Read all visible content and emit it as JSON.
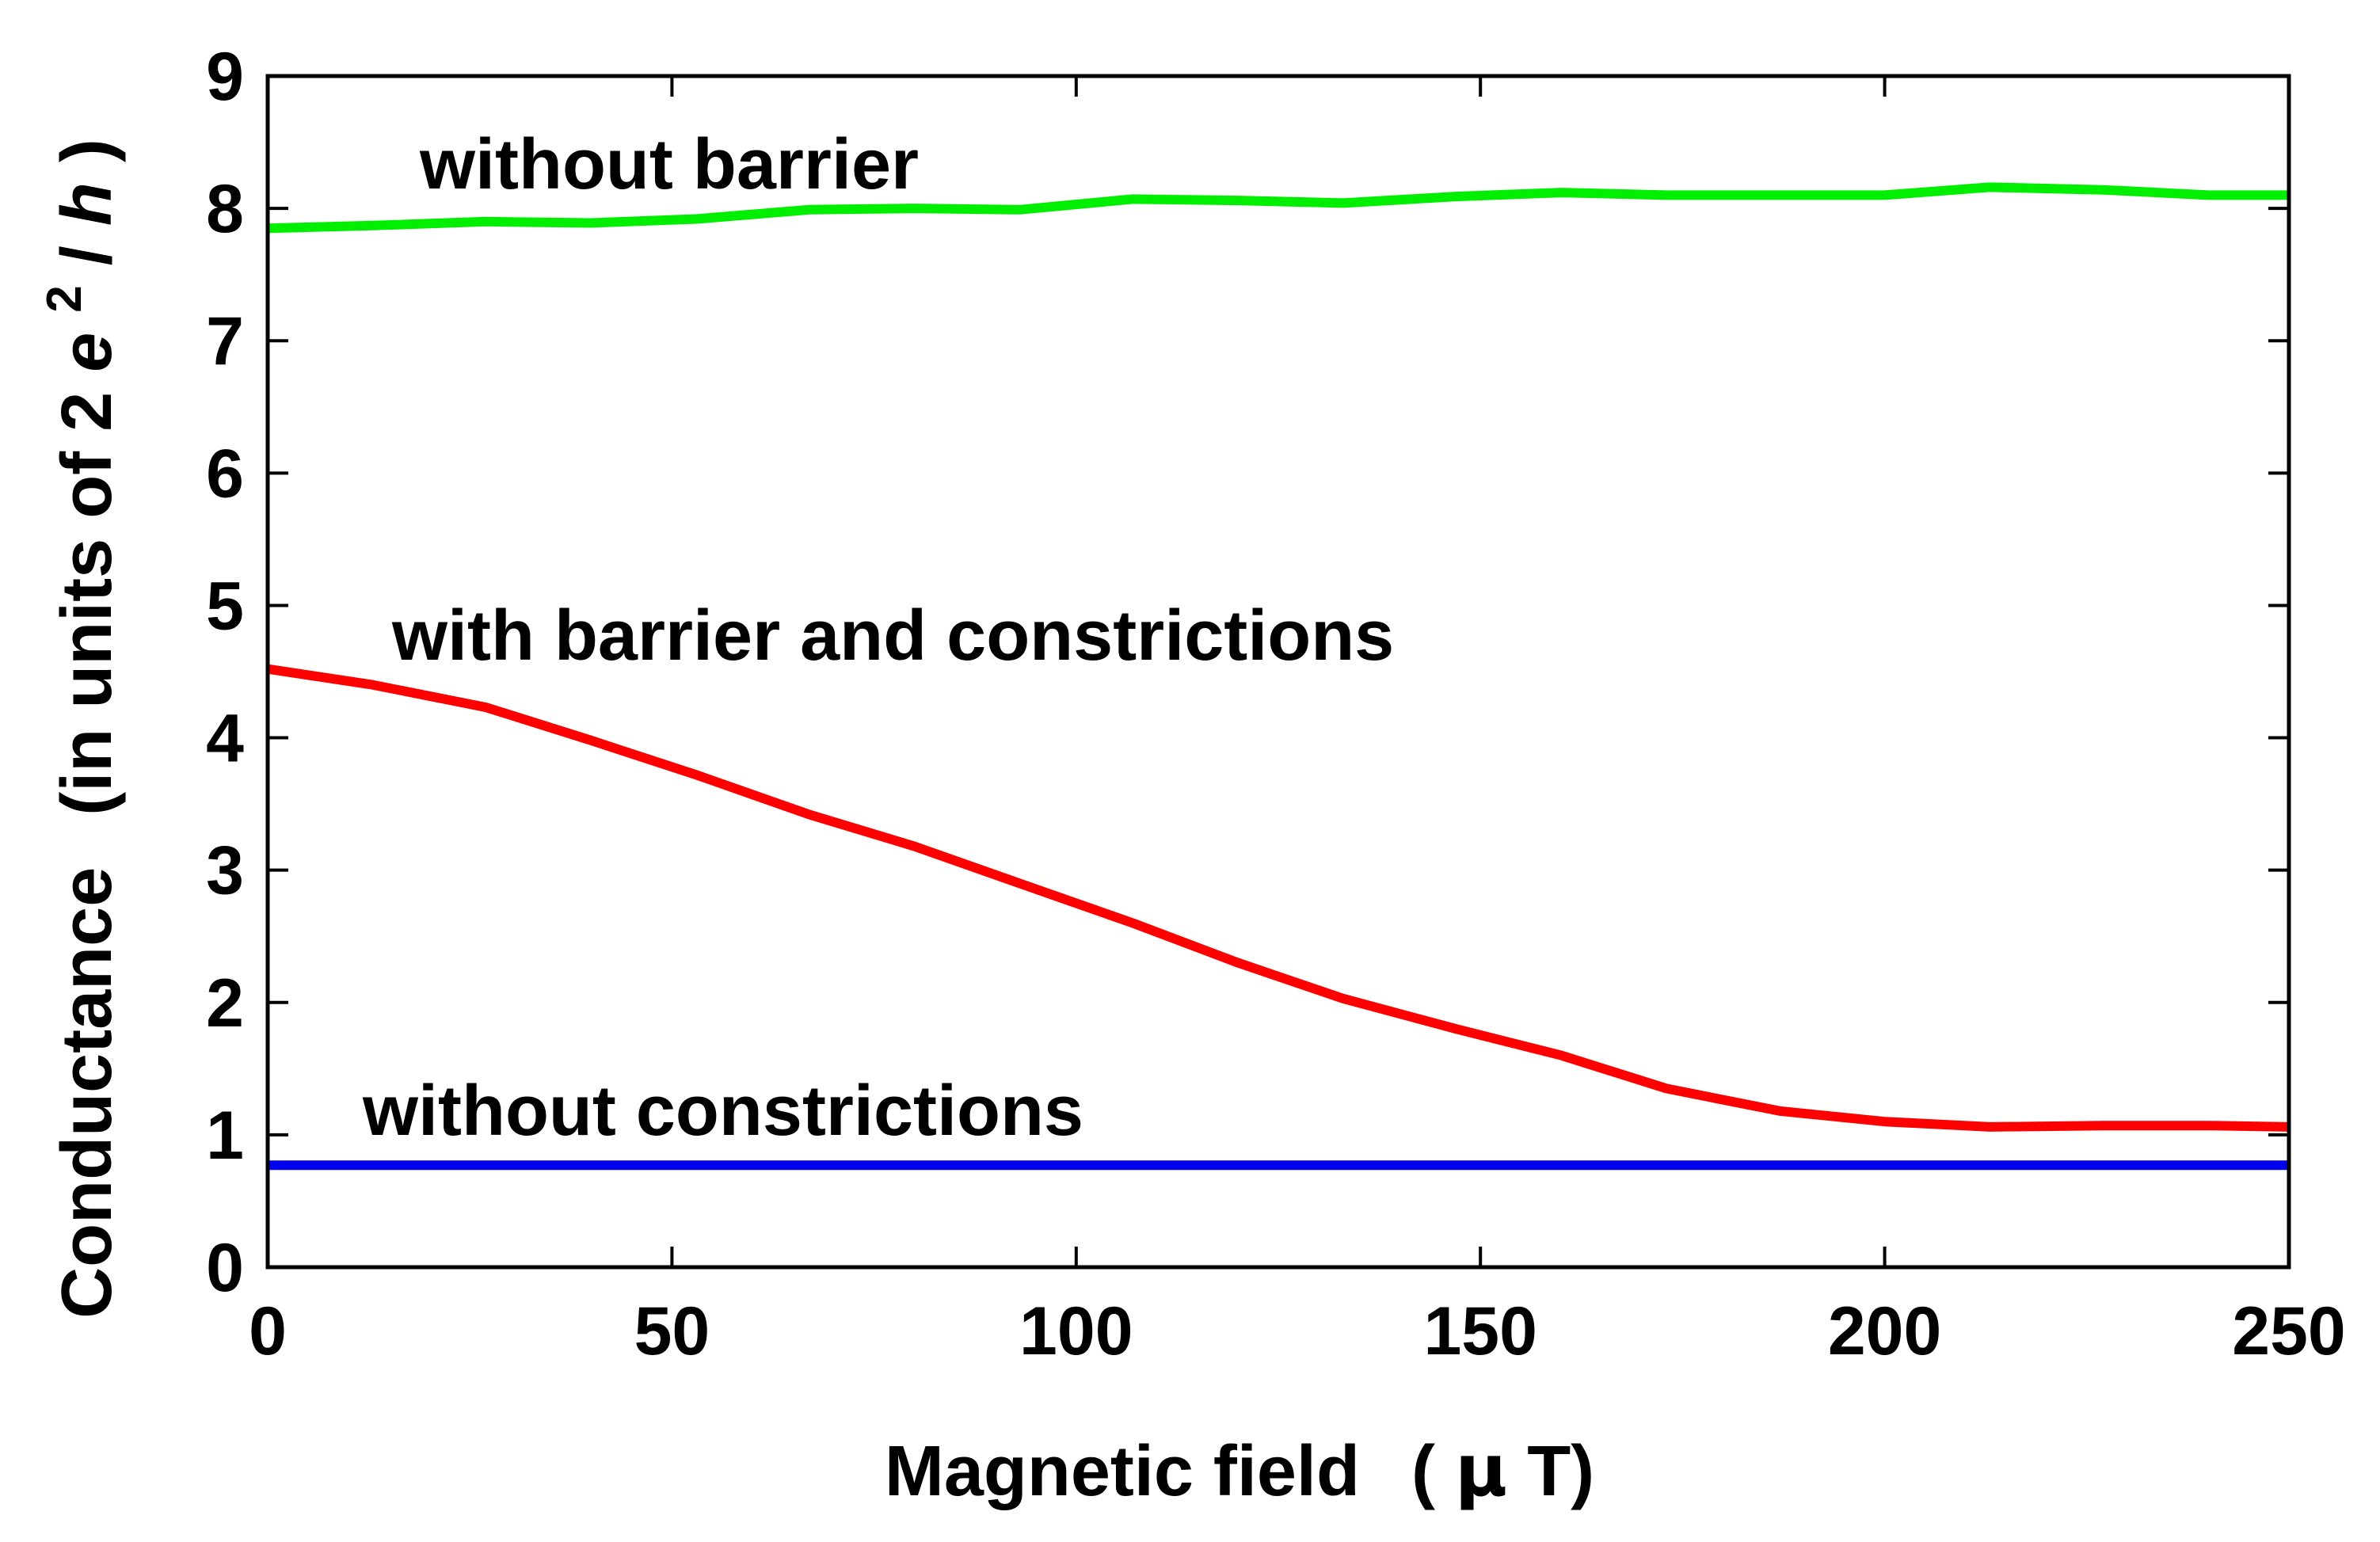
{
  "chart_data": {
    "type": "line",
    "title": "",
    "xlabel": "Magnetic field (μT)",
    "xlabel_parts": {
      "main": "Magnetic field",
      "unit_prefix": "(",
      "mu": "μ",
      "unit_rest": "T)"
    },
    "ylabel": "Conductance (in units of 2 e^2/h)",
    "ylabel_parts": {
      "main": "Conductance",
      "paren_open": "(in units of 2 ",
      "e": "e",
      "sup": "2",
      "slash": "/",
      "h": "h",
      "paren_close": ")"
    },
    "xlim": [
      0,
      250
    ],
    "ylim": [
      0,
      9
    ],
    "x_ticks": [
      "0",
      "50",
      "100",
      "150",
      "200",
      "250"
    ],
    "y_ticks": [
      "0",
      "1",
      "2",
      "3",
      "4",
      "5",
      "6",
      "7",
      "8",
      "9"
    ],
    "grid": false,
    "series": [
      {
        "name": "without barrier",
        "color": "#00ee00",
        "x": [
          0,
          13,
          27,
          40,
          53,
          67,
          80,
          93,
          107,
          120,
          133,
          147,
          160,
          173,
          187,
          200,
          213,
          227,
          240,
          250
        ],
        "y": [
          7.85,
          7.87,
          7.9,
          7.89,
          7.92,
          7.99,
          8.0,
          7.99,
          8.07,
          8.06,
          8.04,
          8.09,
          8.12,
          8.1,
          8.1,
          8.1,
          8.16,
          8.14,
          8.1,
          8.1
        ]
      },
      {
        "name": "with barrier and constrictions",
        "color": "#ff0000",
        "x": [
          0,
          13,
          27,
          40,
          53,
          67,
          80,
          93,
          107,
          120,
          133,
          147,
          160,
          173,
          187,
          200,
          213,
          227,
          240,
          250
        ],
        "y": [
          4.52,
          4.4,
          4.23,
          3.98,
          3.72,
          3.42,
          3.18,
          2.9,
          2.6,
          2.3,
          2.03,
          1.8,
          1.6,
          1.35,
          1.18,
          1.1,
          1.06,
          1.07,
          1.07,
          1.06
        ]
      },
      {
        "name": "without constrictions",
        "color": "#0000ee",
        "x": [
          0,
          50,
          100,
          150,
          200,
          250
        ],
        "y": [
          0.77,
          0.77,
          0.77,
          0.77,
          0.77,
          0.77
        ]
      }
    ],
    "labels": {
      "without_barrier": "without barrier",
      "with_barrier": "with barrier and constrictions",
      "without_constrictions": "without constrictions"
    }
  }
}
